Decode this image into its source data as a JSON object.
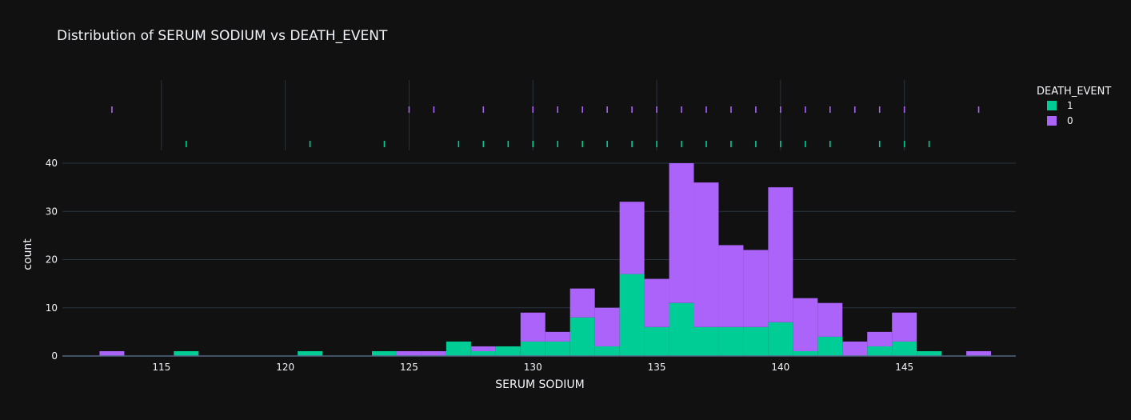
{
  "chart_data": {
    "type": "bar",
    "title": "Distribution of SERUM SODIUM vs DEATH_EVENT",
    "xlabel": "SERUM SODIUM",
    "ylabel": "count",
    "barmode": "stack",
    "bin_width": 1,
    "xlim": [
      111,
      149.5
    ],
    "ylim": [
      0,
      40
    ],
    "x_ticks": [
      115,
      120,
      125,
      130,
      135,
      140,
      145
    ],
    "y_ticks": [
      0,
      10,
      20,
      30,
      40
    ],
    "grid": true,
    "legend": {
      "title": "DEATH_EVENT",
      "placement": "top-right"
    },
    "series": [
      {
        "name": "1",
        "color": "#00cc96",
        "bins": [
          {
            "x": 116,
            "y": 1
          },
          {
            "x": 121,
            "y": 1
          },
          {
            "x": 124,
            "y": 1
          },
          {
            "x": 127,
            "y": 3
          },
          {
            "x": 128,
            "y": 1
          },
          {
            "x": 129,
            "y": 2
          },
          {
            "x": 130,
            "y": 3
          },
          {
            "x": 131,
            "y": 3
          },
          {
            "x": 132,
            "y": 8
          },
          {
            "x": 133,
            "y": 2
          },
          {
            "x": 134,
            "y": 17
          },
          {
            "x": 135,
            "y": 6
          },
          {
            "x": 136,
            "y": 11
          },
          {
            "x": 137,
            "y": 6
          },
          {
            "x": 138,
            "y": 6
          },
          {
            "x": 139,
            "y": 6
          },
          {
            "x": 140,
            "y": 7
          },
          {
            "x": 141,
            "y": 1
          },
          {
            "x": 142,
            "y": 4
          },
          {
            "x": 144,
            "y": 2
          },
          {
            "x": 145,
            "y": 3
          },
          {
            "x": 146,
            "y": 1
          }
        ],
        "rug": [
          116,
          121,
          124,
          127,
          128,
          129,
          130,
          131,
          132,
          133,
          134,
          135,
          136,
          137,
          138,
          139,
          140,
          141,
          142,
          144,
          145,
          146
        ]
      },
      {
        "name": "0",
        "color": "#ab63fa",
        "bins": [
          {
            "x": 113,
            "y": 1
          },
          {
            "x": 125,
            "y": 1
          },
          {
            "x": 126,
            "y": 1
          },
          {
            "x": 128,
            "y": 1
          },
          {
            "x": 130,
            "y": 6
          },
          {
            "x": 131,
            "y": 2
          },
          {
            "x": 132,
            "y": 6
          },
          {
            "x": 133,
            "y": 8
          },
          {
            "x": 134,
            "y": 15
          },
          {
            "x": 135,
            "y": 10
          },
          {
            "x": 136,
            "y": 29
          },
          {
            "x": 137,
            "y": 30
          },
          {
            "x": 138,
            "y": 17
          },
          {
            "x": 139,
            "y": 16
          },
          {
            "x": 140,
            "y": 28
          },
          {
            "x": 141,
            "y": 11
          },
          {
            "x": 142,
            "y": 7
          },
          {
            "x": 143,
            "y": 3
          },
          {
            "x": 144,
            "y": 3
          },
          {
            "x": 145,
            "y": 6
          },
          {
            "x": 148,
            "y": 1
          }
        ],
        "rug": [
          113,
          125,
          126,
          128,
          130,
          131,
          132,
          133,
          134,
          135,
          136,
          137,
          138,
          139,
          140,
          141,
          142,
          143,
          144,
          145,
          148
        ]
      }
    ],
    "colors": {
      "background": "#111111",
      "grid": "#283442",
      "text": "#f2f5fa"
    }
  }
}
